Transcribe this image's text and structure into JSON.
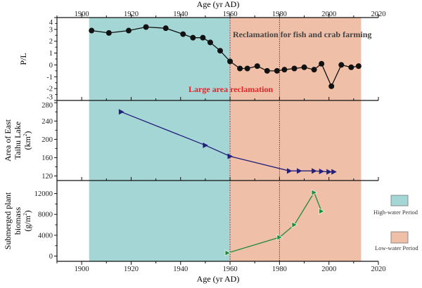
{
  "chart_data": {
    "type": "line",
    "x_axis": {
      "label": "Age (yr AD)",
      "range": [
        1890,
        2020
      ],
      "ticks": [
        1900,
        1920,
        1940,
        1960,
        1980,
        2000,
        2020
      ],
      "tick_labels": [
        "1900",
        "1920",
        "1940",
        "1960",
        "1980",
        "2000",
        "2020"
      ]
    },
    "periods": [
      {
        "name": "High-water Period",
        "from": 1903,
        "to": 1960,
        "color": "#a5d6d6"
      },
      {
        "name": "Low-water Period",
        "from": 1960,
        "to": 2013,
        "color": "#f0bfa7"
      }
    ],
    "events": [
      {
        "label": "Large area reclamation",
        "year": 1960,
        "color": "#e0262a",
        "style": "dashed"
      },
      {
        "label": "Reclamation for fish and crab farming",
        "year": 1980,
        "color": "#444444",
        "style": "dotted"
      }
    ],
    "panels": [
      {
        "ylabel": "P/L",
        "ylim": [
          -3,
          4
        ],
        "yticks": [
          -3,
          -2,
          -1,
          0,
          1,
          2,
          3,
          4
        ],
        "ytick_labels": [
          "-3",
          "-2",
          "-1",
          "0",
          "1",
          "2",
          "3",
          "4"
        ],
        "marker": "circle",
        "color": "#111111",
        "x": [
          1904,
          1911,
          1919,
          1926,
          1934,
          1941,
          1945,
          1949,
          1952,
          1956,
          1960,
          1964,
          1967,
          1971,
          1975,
          1979,
          1982,
          1986,
          1990,
          1994,
          1997,
          2001,
          2005,
          2009,
          2012
        ],
        "y": [
          2.9,
          2.7,
          2.9,
          3.2,
          3.1,
          2.6,
          2.3,
          2.3,
          1.9,
          1.2,
          0.3,
          -0.3,
          -0.3,
          -0.1,
          -0.5,
          -0.5,
          -0.4,
          -0.3,
          -0.2,
          -0.4,
          0.1,
          -1.8,
          0.0,
          -0.2,
          -0.1
        ]
      },
      {
        "ylabel": [
          "Area of East",
          "Taihu Lake",
          "(km",
          "2",
          ")"
        ],
        "ylim": [
          110,
          285
        ],
        "yticks": [
          120,
          160,
          200,
          240,
          280
        ],
        "ytick_labels": [
          "120",
          "160",
          "200",
          "240",
          "280"
        ],
        "marker": "triangle-right",
        "color": "#23207a",
        "x": [
          1916,
          1950,
          1960,
          1984,
          1988,
          1994,
          1997,
          2000,
          2002
        ],
        "y": [
          260,
          187,
          163,
          131,
          131,
          131,
          130,
          129,
          129
        ]
      },
      {
        "ylabel": [
          "Submerged plant",
          "biomass",
          "(g/m",
          "2",
          ")"
        ],
        "ylim": [
          -1000,
          14500
        ],
        "yticks": [
          0,
          4000,
          8000,
          12000
        ],
        "ytick_labels": [
          "0",
          "4000",
          "8000",
          "12000"
        ],
        "marker": "triangle-right",
        "color": "#1e8c3a",
        "x": [
          1959,
          1980,
          1986,
          1994,
          1997
        ],
        "y": [
          600,
          3600,
          6000,
          12200,
          8600
        ]
      }
    ],
    "legend": {
      "placement": "right"
    }
  }
}
